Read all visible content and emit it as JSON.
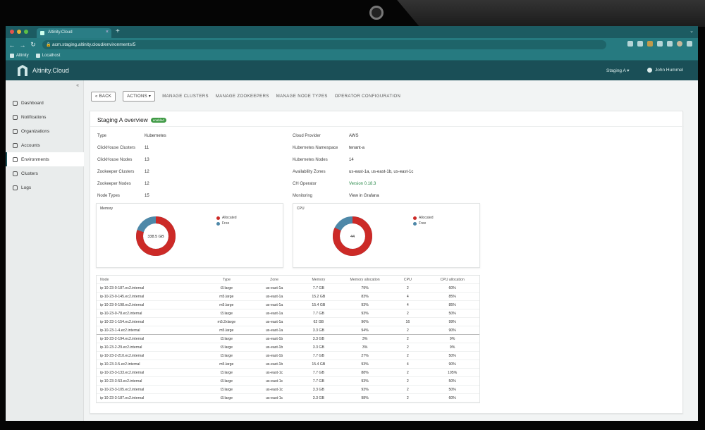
{
  "browser": {
    "tab_title": "Altinity.Cloud",
    "tab_close": "×",
    "new_tab": "+",
    "tab_menu": "⌄",
    "url": "acm.staging.altinity.cloud/environments/5",
    "bookmarks": [
      "Altinity",
      "Localhost"
    ]
  },
  "header": {
    "brand": "Altinity.Cloud",
    "environment_selector": "Staging A ▾",
    "user_name": "John Hummel"
  },
  "sidebar": {
    "collapse": "«",
    "items": [
      {
        "label": "Dashboard",
        "icon": "home-icon"
      },
      {
        "label": "Notifications",
        "icon": "bell-icon"
      },
      {
        "label": "Organizations",
        "icon": "building-icon"
      },
      {
        "label": "Accounts",
        "icon": "user-icon"
      },
      {
        "label": "Environments",
        "icon": "globe-icon",
        "active": true
      },
      {
        "label": "Clusters",
        "icon": "cluster-icon"
      },
      {
        "label": "Logs",
        "icon": "log-icon"
      }
    ]
  },
  "actions": {
    "back": "« BACK",
    "actions": "ACTIONS ▾",
    "manage_clusters": "MANAGE CLUSTERS",
    "manage_zookeepers": "MANAGE ZOOKEEPERS",
    "manage_node_types": "MANAGE NODE TYPES",
    "operator_configuration": "OPERATOR CONFIGURATION"
  },
  "overview": {
    "title": "Staging A overview",
    "badge": "enabled",
    "left": [
      {
        "key": "Type",
        "value": "Kubernetes"
      },
      {
        "key": "ClickHouse Clusters",
        "value": "11"
      },
      {
        "key": "ClickHouse Nodes",
        "value": "13"
      },
      {
        "key": "Zookeeper Clusters",
        "value": "12"
      },
      {
        "key": "Zookeeper Nodes",
        "value": "12"
      },
      {
        "key": "Node Types",
        "value": "15"
      }
    ],
    "right": [
      {
        "key": "Cloud Provider",
        "value": "AWS"
      },
      {
        "key": "Kubernetes Namespace",
        "value": "tenant-a"
      },
      {
        "key": "Kubernetes Nodes",
        "value": "14"
      },
      {
        "key": "Availability Zones",
        "value": "us-east-1a, us-east-1b, us-east-1c"
      },
      {
        "key": "CH Operator",
        "value": "Version 0.18.3",
        "link": true
      },
      {
        "key": "Monitoring",
        "value": "View in Grafana"
      }
    ]
  },
  "memory_panel": {
    "title": "Memory",
    "center": "338.5 GB",
    "used_fraction": 0.8,
    "legend": [
      {
        "label": "Allocated",
        "color": "#cc2a27"
      },
      {
        "label": "Free",
        "color": "#4e88a8"
      }
    ]
  },
  "cpu_panel": {
    "title": "CPU",
    "center": "44",
    "used_fraction": 0.82,
    "legend": [
      {
        "label": "Allocated",
        "color": "#cc2a27"
      },
      {
        "label": "Free",
        "color": "#4e88a8"
      }
    ]
  },
  "nodes_table": {
    "headers": [
      "Node",
      "Type",
      "Zone",
      "Memory",
      "Memory allocation",
      "CPU",
      "CPU allocation"
    ],
    "rows": [
      [
        "ip-10-23-0-187.ec2.internal",
        "t3.large",
        "us-east-1a",
        "7.7 GB",
        "79%",
        "2",
        "60%"
      ],
      [
        "ip-10-23-0-145.ec2.internal",
        "m5.large",
        "us-east-1a",
        "15.2 GB",
        "83%",
        "4",
        "85%"
      ],
      [
        "ip-10-23-0-198.ec2.internal",
        "m5.large",
        "us-east-1a",
        "15.4 GB",
        "93%",
        "4",
        "85%"
      ],
      [
        "ip-10-23-0-78.ec2.internal",
        "t3.large",
        "us-east-1a",
        "7.7 GB",
        "93%",
        "2",
        "50%"
      ],
      [
        "ip-10-23-1-154.ec2.internal",
        "m5.2xlarge",
        "us-east-1a",
        "62 GB",
        "96%",
        "16",
        "99%"
      ],
      [
        "ip-10-23-1-4.ec2.internal",
        "m5.large",
        "us-east-1a",
        "3.3 GB",
        "94%",
        "2",
        "90%"
      ],
      [
        "ip-10-23-2-194.ec2.internal",
        "t3.large",
        "us-east-1b",
        "3.3 GB",
        "3%",
        "2",
        "9%"
      ],
      [
        "ip-10-23-2-29.ec2.internal",
        "t3.large",
        "us-east-1b",
        "3.3 GB",
        "3%",
        "2",
        "9%"
      ],
      [
        "ip-10-23-2-210.ec2.internal",
        "t3.large",
        "us-east-1b",
        "7.7 GB",
        "27%",
        "2",
        "50%"
      ],
      [
        "ip-10-23-3-5.ec2.internal",
        "m5.large",
        "us-east-1b",
        "15.4 GB",
        "93%",
        "4",
        "90%"
      ],
      [
        "ip-10-23-3-133.ec2.internal",
        "t3.large",
        "us-east-1c",
        "7.7 GB",
        "88%",
        "2",
        "105%"
      ],
      [
        "ip-10-23-3-53.ec2.internal",
        "t3.large",
        "us-east-1c",
        "7.7 GB",
        "93%",
        "2",
        "50%"
      ],
      [
        "ip-10-23-3-105.ec2.internal",
        "t3.large",
        "us-east-1c",
        "3.3 GB",
        "93%",
        "2",
        "50%"
      ],
      [
        "ip-10-23-3-187.ec2.internal",
        "t3.large",
        "us-east-1c",
        "3.3 GB",
        "98%",
        "2",
        "60%"
      ]
    ]
  },
  "colors": {
    "header_bg": "#1a4f57",
    "browser_bg": "#267a80",
    "allocated": "#cc2a27",
    "free": "#4e88a8",
    "badge": "#3f9a45",
    "link": "#2a8a4a"
  }
}
